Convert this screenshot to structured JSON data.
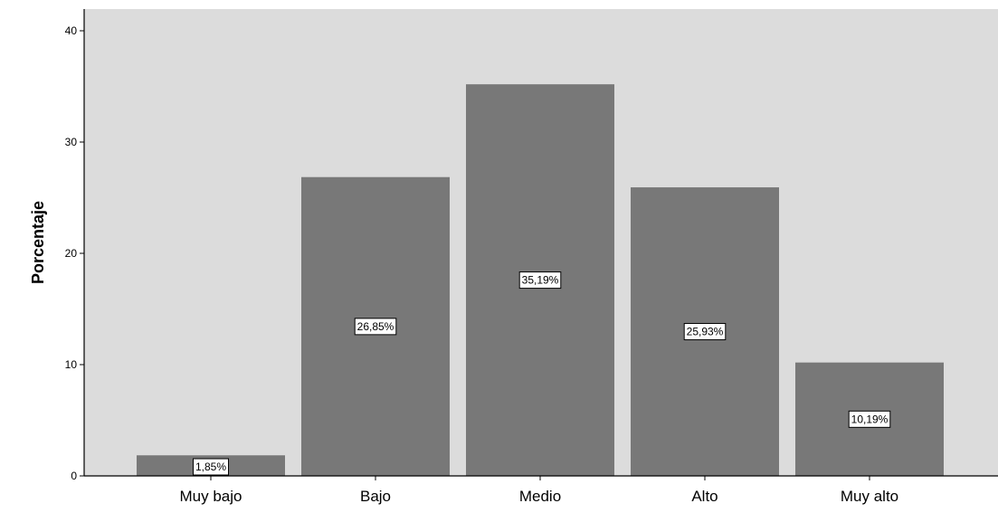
{
  "chart_data": {
    "type": "bar",
    "ylabel": "Porcentaje",
    "xlabel": "",
    "categories": [
      "Muy bajo",
      "Bajo",
      "Medio",
      "Alto",
      "Muy alto"
    ],
    "values": [
      1.85,
      26.85,
      35.19,
      25.93,
      10.19
    ],
    "data_labels": [
      "1,85%",
      "26,85%",
      "35,19%",
      "25,93%",
      "10,19%"
    ],
    "ylim": [
      0,
      42
    ],
    "yticks": [
      0,
      10,
      20,
      30,
      40
    ],
    "ytick_labels": [
      "0",
      "10",
      "20",
      "30",
      "40"
    ],
    "grid": false,
    "colors": {
      "plot_background": "#dcdcdc",
      "bar_fill": "#787878",
      "axis": "#000000",
      "label_box": "#ffffff"
    }
  }
}
